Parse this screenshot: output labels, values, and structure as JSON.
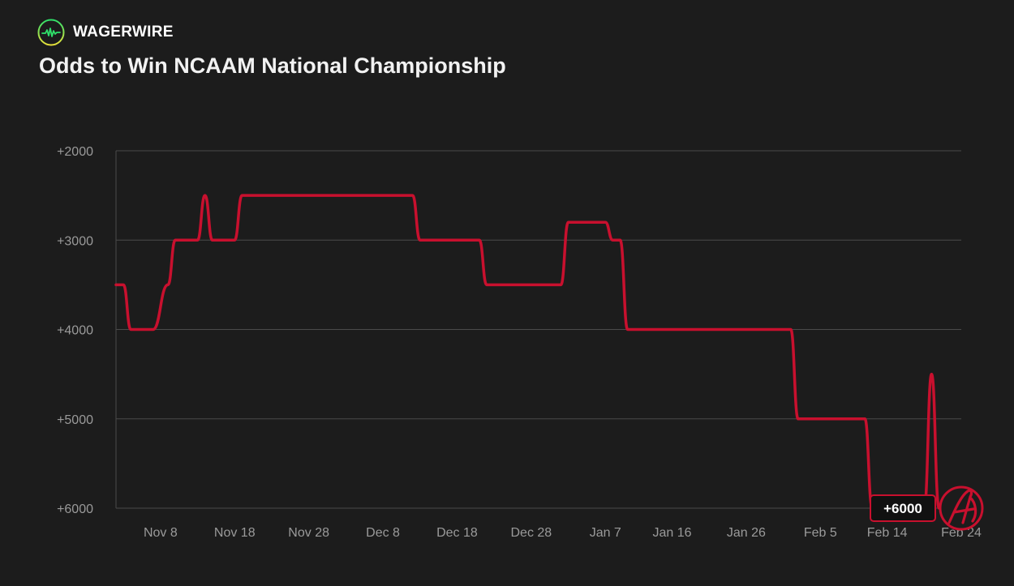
{
  "brand": {
    "name": "WAGERWIRE",
    "icon": "pulse-circle-icon"
  },
  "colors": {
    "background": "#1c1c1c",
    "line": "#c8102e",
    "grid": "#4a4a4a",
    "tick": "#9a9a9a"
  },
  "chart_data": {
    "type": "line",
    "title": "Odds to Win NCAAM National Championship",
    "xlabel": "",
    "ylabel": "",
    "grid": true,
    "legend": "none",
    "y_axis": {
      "ticks": [
        "+2000",
        "+3000",
        "+4000",
        "+5000",
        "+6000"
      ],
      "values": [
        2000,
        3000,
        4000,
        5000,
        6000
      ],
      "inverted": true
    },
    "x_axis": {
      "ticks": [
        "Nov 8",
        "Nov 18",
        "Nov 28",
        "Dec 8",
        "Dec 18",
        "Dec 28",
        "Jan 7",
        "Jan 16",
        "Jan 26",
        "Feb 5",
        "Feb 14",
        "Feb 24"
      ],
      "range": [
        "Nov 2",
        "Feb 24"
      ]
    },
    "series": [
      {
        "points": [
          [
            "Nov 2",
            3500
          ],
          [
            "Nov 3",
            3500
          ],
          [
            "Nov 4",
            4000
          ],
          [
            "Nov 7",
            4000
          ],
          [
            "Nov 9",
            3500
          ],
          [
            "Nov 10",
            3000
          ],
          [
            "Nov 13",
            3000
          ],
          [
            "Nov 14",
            2500
          ],
          [
            "Nov 15",
            3000
          ],
          [
            "Nov 18",
            3000
          ],
          [
            "Nov 19",
            2500
          ],
          [
            "Dec 12",
            2500
          ],
          [
            "Dec 13",
            3000
          ],
          [
            "Dec 21",
            3000
          ],
          [
            "Dec 22",
            3500
          ],
          [
            "Jan 1",
            3500
          ],
          [
            "Jan 2",
            2800
          ],
          [
            "Jan 7",
            2800
          ],
          [
            "Jan 8",
            3000
          ],
          [
            "Jan 9",
            3000
          ],
          [
            "Jan 10",
            4000
          ],
          [
            "Feb 1",
            4000
          ],
          [
            "Feb 2",
            5000
          ],
          [
            "Feb 11",
            5000
          ],
          [
            "Feb 12",
            6000
          ],
          [
            "Feb 19",
            6000
          ],
          [
            "Feb 20",
            4500
          ],
          [
            "Feb 21",
            6000
          ],
          [
            "Feb 22",
            6000
          ]
        ]
      }
    ],
    "callout": {
      "label": "+6000",
      "value": 6000,
      "date": "Feb 22"
    },
    "team_logo": {
      "icon": "alabama-script-a-logo"
    }
  }
}
